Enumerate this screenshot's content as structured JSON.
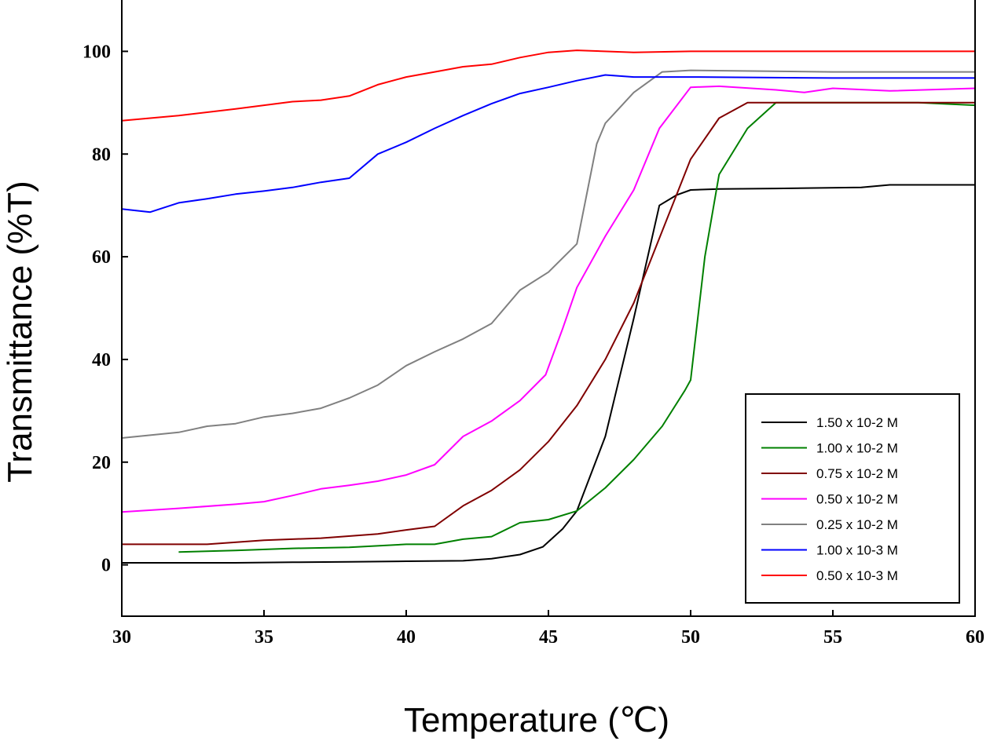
{
  "chart_data": {
    "type": "line",
    "xlabel": "Temperature (℃)",
    "ylabel": "Transmittance (%T)",
    "xlim": [
      30,
      60
    ],
    "ylim": [
      -10,
      110
    ],
    "xticks": [
      30,
      35,
      40,
      45,
      50,
      55,
      60
    ],
    "yticks": [
      0,
      20,
      40,
      60,
      80,
      100
    ],
    "grid": false,
    "legend_position": "bottom-right",
    "series": [
      {
        "name": "1.50 x 10-2 M",
        "color": "#000000",
        "points": [
          [
            30,
            0.4
          ],
          [
            32,
            0.4
          ],
          [
            34,
            0.4
          ],
          [
            36,
            0.5
          ],
          [
            38,
            0.6
          ],
          [
            40,
            0.7
          ],
          [
            42,
            0.8
          ],
          [
            43,
            1.2
          ],
          [
            44,
            2.0
          ],
          [
            44.8,
            3.5
          ],
          [
            45.5,
            7
          ],
          [
            46,
            10.5
          ],
          [
            47,
            25
          ],
          [
            48,
            48
          ],
          [
            48.9,
            70
          ],
          [
            49.5,
            72
          ],
          [
            50,
            73
          ],
          [
            51,
            73.2
          ],
          [
            53,
            73.3
          ],
          [
            56,
            73.5
          ],
          [
            57,
            74
          ],
          [
            60,
            74
          ]
        ]
      },
      {
        "name": "1.00 x 10-2 M",
        "color": "#008000",
        "points": [
          [
            32,
            2.5
          ],
          [
            34,
            2.8
          ],
          [
            36,
            3.2
          ],
          [
            38,
            3.4
          ],
          [
            40,
            4.0
          ],
          [
            41,
            4.0
          ],
          [
            42,
            5.0
          ],
          [
            43,
            5.5
          ],
          [
            44,
            8.2
          ],
          [
            45,
            8.8
          ],
          [
            46,
            10.5
          ],
          [
            47,
            15
          ],
          [
            48,
            20.5
          ],
          [
            49,
            27
          ],
          [
            49.8,
            34
          ],
          [
            50,
            36
          ],
          [
            50.5,
            60
          ],
          [
            51,
            76
          ],
          [
            52,
            85
          ],
          [
            53,
            90
          ],
          [
            55,
            90
          ],
          [
            58,
            90
          ],
          [
            60,
            89.5
          ]
        ]
      },
      {
        "name": "0.75 x 10-2 M",
        "color": "#800000",
        "points": [
          [
            30,
            4
          ],
          [
            33,
            4
          ],
          [
            35,
            4.8
          ],
          [
            37,
            5.2
          ],
          [
            39,
            6
          ],
          [
            40,
            6.8
          ],
          [
            41,
            7.5
          ],
          [
            42,
            11.5
          ],
          [
            43,
            14.5
          ],
          [
            44,
            18.5
          ],
          [
            45,
            24
          ],
          [
            46,
            31
          ],
          [
            47,
            40
          ],
          [
            48,
            51
          ],
          [
            49,
            65
          ],
          [
            50,
            79
          ],
          [
            51,
            87
          ],
          [
            52,
            90
          ],
          [
            55,
            90
          ],
          [
            60,
            90
          ]
        ]
      },
      {
        "name": "0.50 x 10-2 M",
        "color": "#ff00ff",
        "points": [
          [
            30,
            10.3
          ],
          [
            32,
            11
          ],
          [
            34,
            11.8
          ],
          [
            35,
            12.3
          ],
          [
            36,
            13.5
          ],
          [
            37,
            14.8
          ],
          [
            38,
            15.5
          ],
          [
            39,
            16.3
          ],
          [
            40,
            17.5
          ],
          [
            41,
            19.5
          ],
          [
            42,
            25
          ],
          [
            43,
            28
          ],
          [
            44,
            32
          ],
          [
            44.9,
            37
          ],
          [
            45.5,
            46
          ],
          [
            46,
            54
          ],
          [
            47,
            64
          ],
          [
            48,
            73
          ],
          [
            48.9,
            85
          ],
          [
            50,
            93
          ],
          [
            51,
            93.2
          ],
          [
            53,
            92.5
          ],
          [
            54,
            92
          ],
          [
            55,
            92.8
          ],
          [
            57,
            92.3
          ],
          [
            60,
            92.8
          ]
        ]
      },
      {
        "name": "0.25 x 10-2 M",
        "color": "#808080",
        "points": [
          [
            30,
            24.7
          ],
          [
            32,
            25.8
          ],
          [
            33,
            27
          ],
          [
            34,
            27.5
          ],
          [
            35,
            28.8
          ],
          [
            36,
            29.5
          ],
          [
            37,
            30.5
          ],
          [
            38,
            32.5
          ],
          [
            39,
            35
          ],
          [
            40,
            38.8
          ],
          [
            41,
            41.5
          ],
          [
            42,
            44
          ],
          [
            43,
            47
          ],
          [
            44,
            53.5
          ],
          [
            45,
            57
          ],
          [
            46,
            62.5
          ],
          [
            46.7,
            82
          ],
          [
            47,
            86
          ],
          [
            47.5,
            89
          ],
          [
            48,
            92
          ],
          [
            49,
            96
          ],
          [
            50,
            96.3
          ],
          [
            55,
            96
          ],
          [
            60,
            96
          ]
        ]
      },
      {
        "name": "1.00 x 10-3 M",
        "color": "#0000ff",
        "points": [
          [
            30,
            69.3
          ],
          [
            31,
            68.7
          ],
          [
            32,
            70.5
          ],
          [
            33,
            71.3
          ],
          [
            34,
            72.2
          ],
          [
            35,
            72.8
          ],
          [
            36,
            73.5
          ],
          [
            37,
            74.5
          ],
          [
            38,
            75.3
          ],
          [
            39,
            80
          ],
          [
            40,
            82.3
          ],
          [
            41,
            85
          ],
          [
            42,
            87.5
          ],
          [
            43,
            89.8
          ],
          [
            44,
            91.8
          ],
          [
            45,
            93
          ],
          [
            46,
            94.3
          ],
          [
            47,
            95.4
          ],
          [
            48,
            95
          ],
          [
            50,
            95
          ],
          [
            55,
            94.8
          ],
          [
            57,
            94.8
          ],
          [
            60,
            94.8
          ]
        ]
      },
      {
        "name": "0.50 x 10-3 M",
        "color": "#ff0000",
        "points": [
          [
            30,
            86.5
          ],
          [
            32,
            87.5
          ],
          [
            34,
            88.8
          ],
          [
            35,
            89.5
          ],
          [
            36,
            90.2
          ],
          [
            37,
            90.5
          ],
          [
            38,
            91.3
          ],
          [
            39,
            93.5
          ],
          [
            40,
            95
          ],
          [
            41,
            96
          ],
          [
            42,
            97
          ],
          [
            43,
            97.5
          ],
          [
            44,
            98.8
          ],
          [
            45,
            99.8
          ],
          [
            46,
            100.2
          ],
          [
            48,
            99.8
          ],
          [
            50,
            100
          ],
          [
            52,
            100
          ],
          [
            56,
            100
          ],
          [
            60,
            100
          ]
        ]
      }
    ]
  }
}
